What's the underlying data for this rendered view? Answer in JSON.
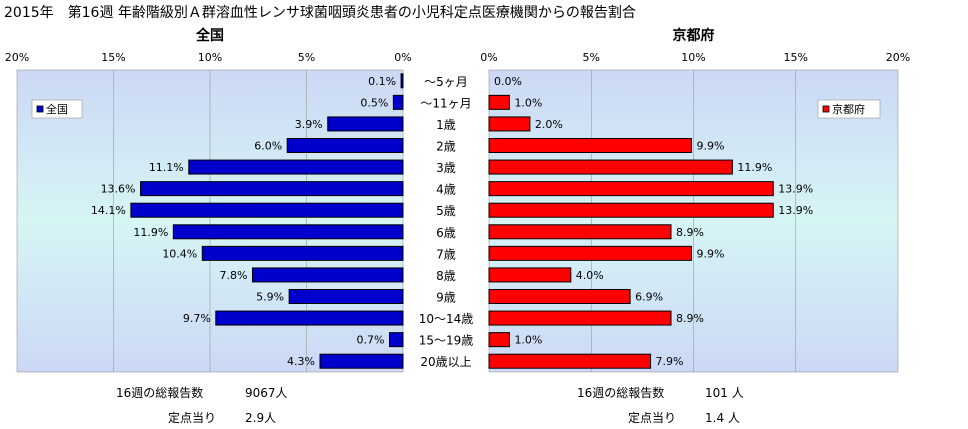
{
  "title": "2015年　第16週 年齢階級別Ａ群溶血性レンサ球菌咽頭炎患者の小児科定点医療機関からの報告割合",
  "categories": [
    "～5ヶ月",
    "～11ヶ月",
    "1歳",
    "2歳",
    "3歳",
    "4歳",
    "5歳",
    "6歳",
    "7歳",
    "8歳",
    "9歳",
    "10～14歳",
    "15～19歳",
    "20歳以上"
  ],
  "colors": {
    "zenkoku": "#0000cc",
    "kyoto": "#ff0000",
    "plot_top": "#ccd8f5",
    "plot_bottom": "#d6f5f5"
  },
  "chart_data": [
    {
      "type": "bar",
      "orientation": "horizontal",
      "direction": "right-to-left",
      "title": "全国",
      "legend": "全国",
      "legend_position": "top-left",
      "tick_labels": [
        "20%",
        "15%",
        "10%",
        "5%",
        "0%"
      ],
      "xlim": [
        0,
        20
      ],
      "grid": true,
      "series": [
        {
          "name": "全国",
          "values": [
            0.1,
            0.5,
            3.9,
            6.0,
            11.1,
            13.6,
            14.1,
            11.9,
            10.4,
            7.8,
            5.9,
            9.7,
            0.7,
            4.3
          ],
          "labels": [
            "0.1%",
            "0.5%",
            "3.9%",
            "6.0%",
            "11.1%",
            "13.6%",
            "14.1%",
            "11.9%",
            "10.4%",
            "7.8%",
            "5.9%",
            "9.7%",
            "0.7%",
            "4.3%"
          ]
        }
      ]
    },
    {
      "type": "bar",
      "orientation": "horizontal",
      "direction": "left-to-right",
      "title": "京都府",
      "legend": "京都府",
      "legend_position": "top-right",
      "tick_labels": [
        "0%",
        "5%",
        "10%",
        "15%",
        "20%"
      ],
      "xlim": [
        0,
        20
      ],
      "grid": true,
      "series": [
        {
          "name": "京都府",
          "values": [
            0.0,
            1.0,
            2.0,
            9.9,
            11.9,
            13.9,
            13.9,
            8.9,
            9.9,
            4.0,
            6.9,
            8.9,
            1.0,
            7.9
          ],
          "labels": [
            "0.0%",
            "1.0%",
            "2.0%",
            "9.9%",
            "11.9%",
            "13.9%",
            "13.9%",
            "8.9%",
            "9.9%",
            "4.0%",
            "6.9%",
            "8.9%",
            "1.0%",
            "7.9%"
          ]
        }
      ]
    }
  ],
  "footer": {
    "zenkoku": {
      "total_label": "16週の総報告数",
      "total_value": "9067人",
      "per_label": "定点当り",
      "per_value": "2.9人"
    },
    "kyoto": {
      "total_label": "16週の総報告数",
      "total_value": "101 人",
      "per_label": "定点当り",
      "per_value": "1.4 人"
    }
  }
}
